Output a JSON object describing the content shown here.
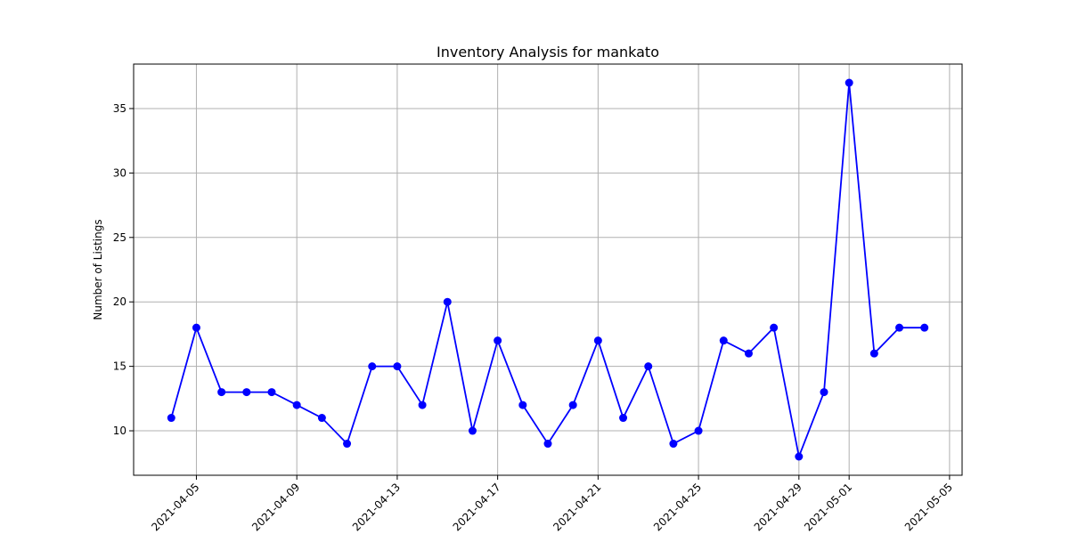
{
  "chart_data": {
    "type": "line",
    "title": "Inventory Analysis for mankato",
    "xlabel": "",
    "ylabel": "Number of Listings",
    "x_tick_labels": [
      "2021-04-05",
      "2021-04-09",
      "2021-04-13",
      "2021-04-17",
      "2021-04-21",
      "2021-04-25",
      "2021-04-29",
      "2021-05-01",
      "2021-05-05"
    ],
    "y_tick_labels": [
      "10",
      "15",
      "20",
      "25",
      "30",
      "35"
    ],
    "grid": true,
    "series": [
      {
        "color": "#0000ff",
        "marker": "circle",
        "x": [
          "2021-04-04",
          "2021-04-05",
          "2021-04-06",
          "2021-04-07",
          "2021-04-08",
          "2021-04-09",
          "2021-04-10",
          "2021-04-11",
          "2021-04-12",
          "2021-04-13",
          "2021-04-14",
          "2021-04-15",
          "2021-04-16",
          "2021-04-17",
          "2021-04-18",
          "2021-04-19",
          "2021-04-20",
          "2021-04-21",
          "2021-04-22",
          "2021-04-23",
          "2021-04-24",
          "2021-04-25",
          "2021-04-26",
          "2021-04-27",
          "2021-04-28",
          "2021-04-29",
          "2021-04-30",
          "2021-05-01",
          "2021-05-02",
          "2021-05-03",
          "2021-05-04"
        ],
        "values": [
          11,
          18,
          13,
          13,
          13,
          12,
          11,
          9,
          15,
          15,
          12,
          20,
          10,
          17,
          12,
          9,
          12,
          17,
          11,
          15,
          9,
          10,
          17,
          16,
          18,
          8,
          13,
          37,
          16,
          18,
          18
        ]
      }
    ]
  }
}
